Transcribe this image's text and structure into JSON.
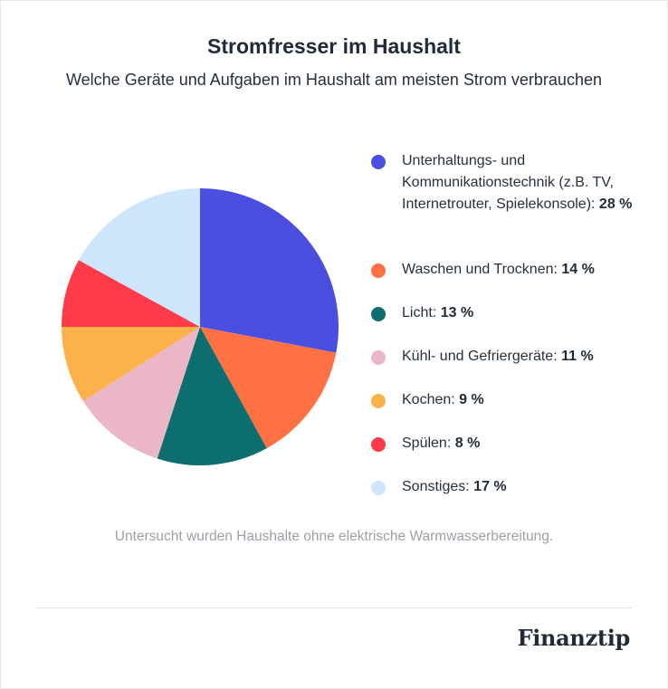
{
  "title": "Stromfresser im Haushalt",
  "subtitle": "Welche Geräte und Aufgaben im Haushalt am meisten Strom verbrauchen",
  "note": "Untersucht wurden Haushalte ohne elektrische Warmwasserbereitung.",
  "brand": "Finanztip",
  "chart_data": {
    "type": "pie",
    "title": "Stromfresser im Haushalt",
    "unit": "%",
    "slices": [
      {
        "label": "Unterhaltungs- und Kommunikationstechnik (z.B. TV, Internetrouter, Spielekonsole):",
        "value_label": "28 %",
        "value": 28,
        "color": "#4a4fdf"
      },
      {
        "label": "Waschen und Trocknen:",
        "value_label": "14 %",
        "value": 14,
        "color": "#ff7043"
      },
      {
        "label": "Licht:",
        "value_label": "13 %",
        "value": 13,
        "color": "#0d6e70"
      },
      {
        "label": "Kühl- und Gefriergeräte:",
        "value_label": "11 %",
        "value": 11,
        "color": "#ebb7c7"
      },
      {
        "label": "Kochen:",
        "value_label": "9 %",
        "value": 9,
        "color": "#fbb24a"
      },
      {
        "label": "Spülen:",
        "value_label": "8 %",
        "value": 8,
        "color": "#ff3b4a"
      },
      {
        "label": "Sonstiges:",
        "value_label": "17 %",
        "value": 17,
        "color": "#cde6fb"
      }
    ]
  }
}
